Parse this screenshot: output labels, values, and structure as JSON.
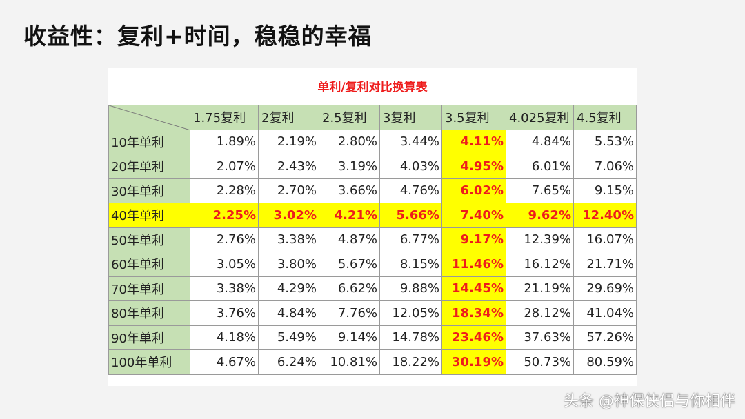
{
  "slide": {
    "title": "收益性：复利+时间，稳稳的幸福"
  },
  "table": {
    "title": "单利/复利对比换算表",
    "columns": [
      "1.75复利",
      "2复利",
      "2.5复利",
      "3复利",
      "3.5复利",
      "4.025复利",
      "4.5复利"
    ],
    "rows": [
      {
        "label": "10年单利",
        "values": [
          "1.89%",
          "2.19%",
          "2.80%",
          "3.44%",
          "4.11%",
          "4.84%",
          "5.53%"
        ]
      },
      {
        "label": "20年单利",
        "values": [
          "2.07%",
          "2.43%",
          "3.19%",
          "4.03%",
          "4.95%",
          "6.01%",
          "7.06%"
        ]
      },
      {
        "label": "30年单利",
        "values": [
          "2.28%",
          "2.70%",
          "3.66%",
          "4.76%",
          "6.02%",
          "7.65%",
          "9.15%"
        ]
      },
      {
        "label": "40年单利",
        "values": [
          "2.25%",
          "3.02%",
          "4.21%",
          "5.66%",
          "7.40%",
          "9.62%",
          "12.40%"
        ]
      },
      {
        "label": "50年单利",
        "values": [
          "2.76%",
          "3.38%",
          "4.87%",
          "6.77%",
          "9.17%",
          "12.39%",
          "16.07%"
        ]
      },
      {
        "label": "60年单利",
        "values": [
          "3.05%",
          "3.80%",
          "5.67%",
          "8.15%",
          "11.46%",
          "16.12%",
          "21.71%"
        ]
      },
      {
        "label": "70年单利",
        "values": [
          "3.38%",
          "4.29%",
          "6.62%",
          "9.88%",
          "14.45%",
          "21.19%",
          "29.69%"
        ]
      },
      {
        "label": "80年单利",
        "values": [
          "3.76%",
          "4.84%",
          "7.76%",
          "12.05%",
          "18.34%",
          "28.12%",
          "41.04%"
        ]
      },
      {
        "label": "90年单利",
        "values": [
          "4.18%",
          "5.49%",
          "9.14%",
          "14.78%",
          "23.46%",
          "37.63%",
          "57.26%"
        ]
      },
      {
        "label": "100年单利",
        "values": [
          "4.67%",
          "6.24%",
          "10.81%",
          "18.22%",
          "30.19%",
          "50.73%",
          "80.59%"
        ]
      }
    ],
    "highlight_row": 3,
    "highlight_column": 4,
    "colors": {
      "header_bg": "#c6e0b4",
      "highlight_bg": "#ffff00",
      "highlight_text": "#ee1c1c",
      "title_text": "#ee1c1c"
    }
  },
  "watermark": "头条 @神保侠侣与你相伴"
}
